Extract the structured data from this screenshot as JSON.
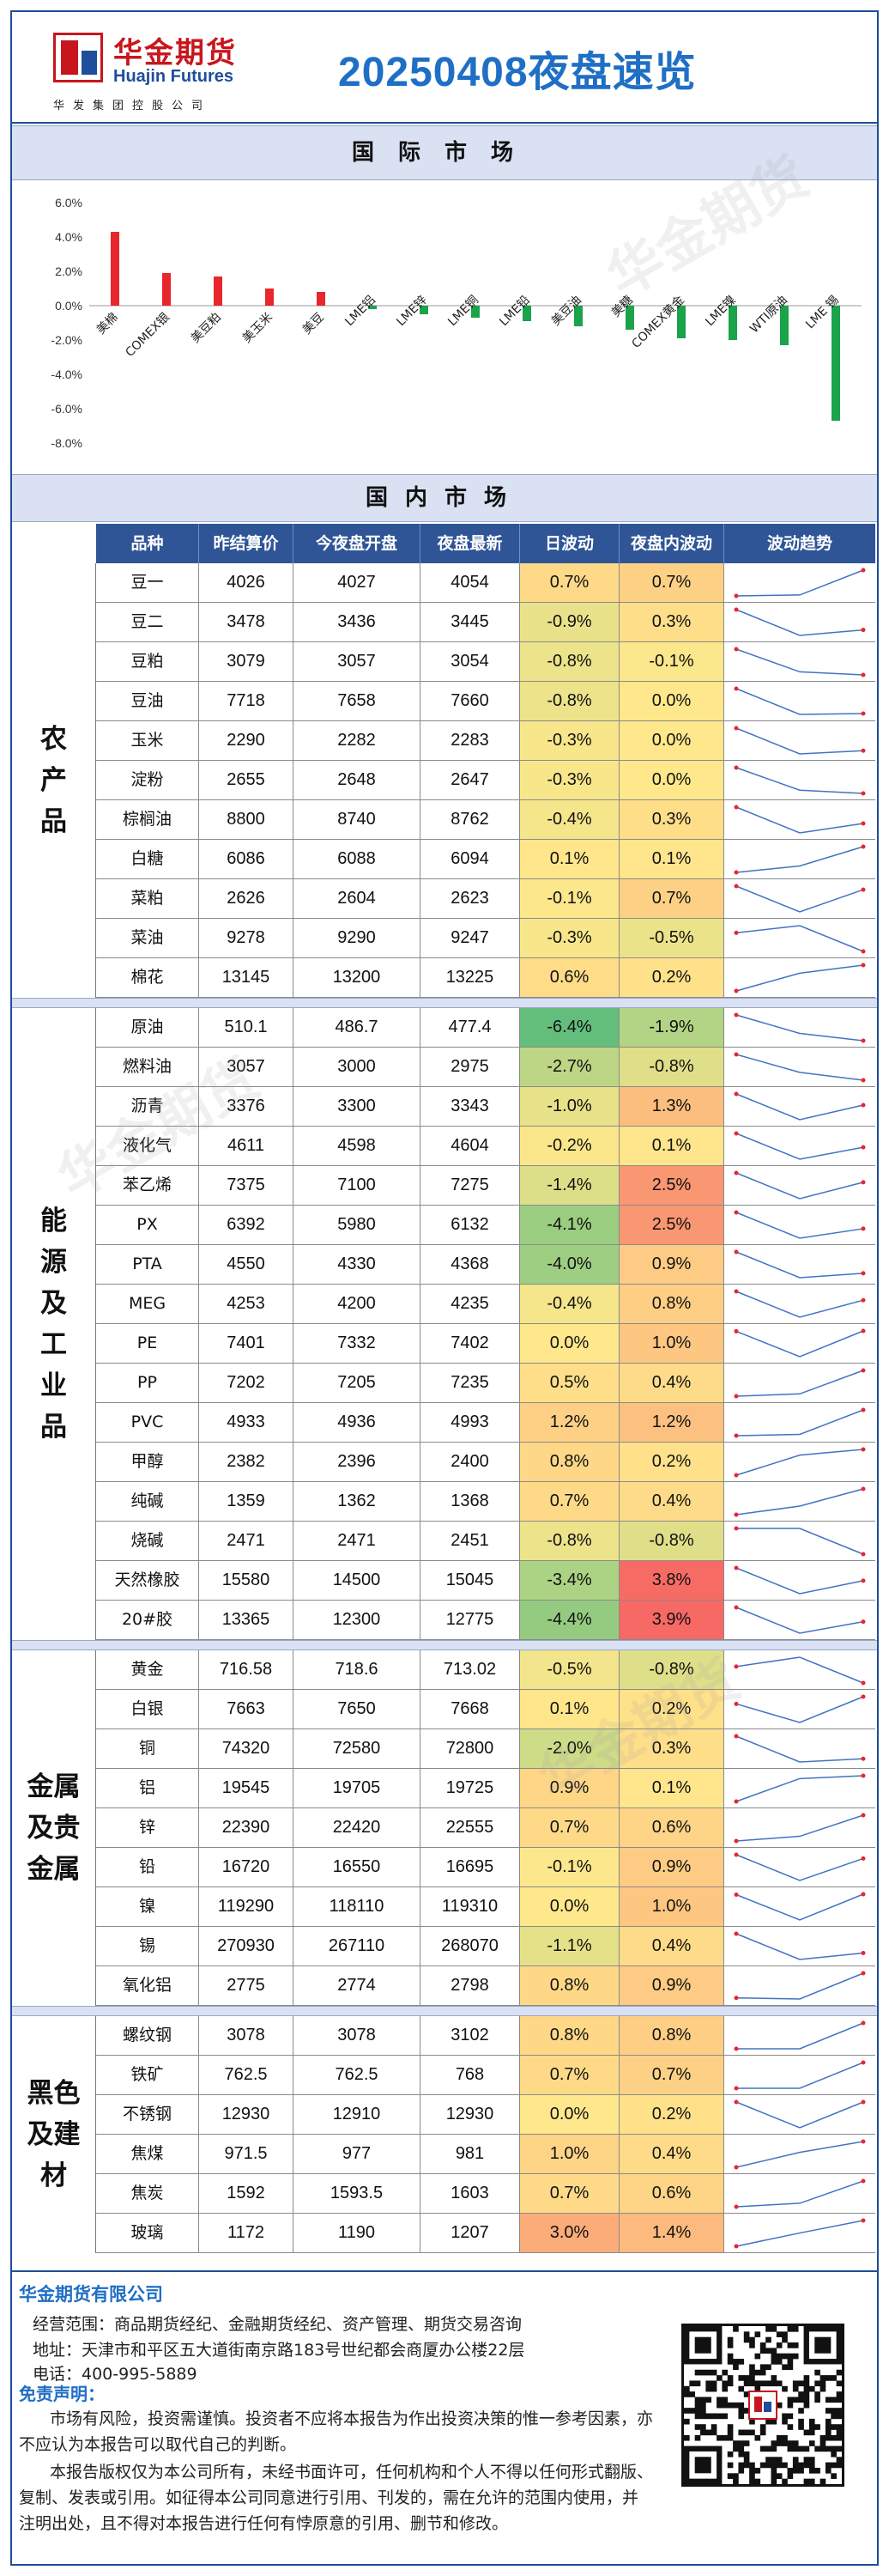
{
  "header": {
    "logo_cn": "华金期货",
    "logo_en": "Huajin Futures",
    "logo_sub": "华发集团控股公司",
    "title": "20250408夜盘速览"
  },
  "intl_title": "国际市场",
  "domestic_title": "国内市场",
  "chart_data": {
    "type": "bar",
    "categories": [
      "美棉",
      "COMEX银",
      "美豆粕",
      "美玉米",
      "美豆",
      "LME铝",
      "LME锌",
      "LME铜",
      "LME铅",
      "美豆油",
      "美糖",
      "COMEX黄金",
      "LME镍",
      "WTI原油",
      "LME 锡"
    ],
    "values": [
      4.3,
      1.9,
      1.7,
      1.0,
      0.8,
      -0.2,
      -0.5,
      -0.7,
      -0.9,
      -1.2,
      -1.4,
      -1.9,
      -2.0,
      -2.3,
      -6.7
    ],
    "ylim": [
      -8,
      6
    ],
    "yticks": [
      "6.0%",
      "4.0%",
      "2.0%",
      "0.0%",
      "-2.0%",
      "-4.0%",
      "-6.0%",
      "-8.0%"
    ],
    "colors": {
      "up": "#e8262b",
      "down": "#1aa34a"
    },
    "legend": "none"
  },
  "table": {
    "headers": [
      "品种",
      "昨结算价",
      "今夜盘开盘",
      "夜盘最新",
      "日波动",
      "夜盘内波动",
      "波动趋势"
    ],
    "groups": [
      {
        "label": "农产品",
        "rows": [
          [
            "豆一",
            "4026",
            "4027",
            "4054",
            "0.7%",
            "0.7%"
          ],
          [
            "豆二",
            "3478",
            "3436",
            "3445",
            "-0.9%",
            "0.3%"
          ],
          [
            "豆粕",
            "3079",
            "3057",
            "3054",
            "-0.8%",
            "-0.1%"
          ],
          [
            "豆油",
            "7718",
            "7658",
            "7660",
            "-0.8%",
            "0.0%"
          ],
          [
            "玉米",
            "2290",
            "2282",
            "2283",
            "-0.3%",
            "0.0%"
          ],
          [
            "淀粉",
            "2655",
            "2648",
            "2647",
            "-0.3%",
            "0.0%"
          ],
          [
            "棕榈油",
            "8800",
            "8740",
            "8762",
            "-0.4%",
            "0.3%"
          ],
          [
            "白糖",
            "6086",
            "6088",
            "6094",
            "0.1%",
            "0.1%"
          ],
          [
            "菜粕",
            "2626",
            "2604",
            "2623",
            "-0.1%",
            "0.7%"
          ],
          [
            "菜油",
            "9278",
            "9290",
            "9247",
            "-0.3%",
            "-0.5%"
          ],
          [
            "棉花",
            "13145",
            "13200",
            "13225",
            "0.6%",
            "0.2%"
          ]
        ]
      },
      {
        "label": "能源及工业品",
        "rows": [
          [
            "原油",
            "510.1",
            "486.7",
            "477.4",
            "-6.4%",
            "-1.9%"
          ],
          [
            "燃料油",
            "3057",
            "3000",
            "2975",
            "-2.7%",
            "-0.8%"
          ],
          [
            "沥青",
            "3376",
            "3300",
            "3343",
            "-1.0%",
            "1.3%"
          ],
          [
            "液化气",
            "4611",
            "4598",
            "4604",
            "-0.2%",
            "0.1%"
          ],
          [
            "苯乙烯",
            "7375",
            "7100",
            "7275",
            "-1.4%",
            "2.5%"
          ],
          [
            "PX",
            "6392",
            "5980",
            "6132",
            "-4.1%",
            "2.5%"
          ],
          [
            "PTA",
            "4550",
            "4330",
            "4368",
            "-4.0%",
            "0.9%"
          ],
          [
            "MEG",
            "4253",
            "4200",
            "4235",
            "-0.4%",
            "0.8%"
          ],
          [
            "PE",
            "7401",
            "7332",
            "7402",
            "0.0%",
            "1.0%"
          ],
          [
            "PP",
            "7202",
            "7205",
            "7235",
            "0.5%",
            "0.4%"
          ],
          [
            "PVC",
            "4933",
            "4936",
            "4993",
            "1.2%",
            "1.2%"
          ],
          [
            "甲醇",
            "2382",
            "2396",
            "2400",
            "0.8%",
            "0.2%"
          ],
          [
            "纯碱",
            "1359",
            "1362",
            "1368",
            "0.7%",
            "0.4%"
          ],
          [
            "烧碱",
            "2471",
            "2471",
            "2451",
            "-0.8%",
            "-0.8%"
          ],
          [
            "天然橡胶",
            "15580",
            "14500",
            "15045",
            "-3.4%",
            "3.8%"
          ],
          [
            "20#胶",
            "13365",
            "12300",
            "12775",
            "-4.4%",
            "3.9%"
          ]
        ]
      },
      {
        "label": "金属及贵金属",
        "rows": [
          [
            "黄金",
            "716.58",
            "718.6",
            "713.02",
            "-0.5%",
            "-0.8%"
          ],
          [
            "白银",
            "7663",
            "7650",
            "7668",
            "0.1%",
            "0.2%"
          ],
          [
            "铜",
            "74320",
            "72580",
            "72800",
            "-2.0%",
            "0.3%"
          ],
          [
            "铝",
            "19545",
            "19705",
            "19725",
            "0.9%",
            "0.1%"
          ],
          [
            "锌",
            "22390",
            "22420",
            "22555",
            "0.7%",
            "0.6%"
          ],
          [
            "铅",
            "16720",
            "16550",
            "16695",
            "-0.1%",
            "0.9%"
          ],
          [
            "镍",
            "119290",
            "118110",
            "119310",
            "0.0%",
            "1.0%"
          ],
          [
            "锡",
            "270930",
            "267110",
            "268070",
            "-1.1%",
            "0.4%"
          ],
          [
            "氧化铝",
            "2775",
            "2774",
            "2798",
            "0.8%",
            "0.9%"
          ]
        ]
      },
      {
        "label": "黑色及建材",
        "rows": [
          [
            "螺纹钢",
            "3078",
            "3078",
            "3102",
            "0.8%",
            "0.8%"
          ],
          [
            "铁矿",
            "762.5",
            "762.5",
            "768",
            "0.7%",
            "0.7%"
          ],
          [
            "不锈钢",
            "12930",
            "12910",
            "12930",
            "0.0%",
            "0.2%"
          ],
          [
            "焦煤",
            "971.5",
            "977",
            "981",
            "1.0%",
            "0.4%"
          ],
          [
            "焦炭",
            "1592",
            "1593.5",
            "1603",
            "0.7%",
            "0.6%"
          ],
          [
            "玻璃",
            "1172",
            "1190",
            "1207",
            "3.0%",
            "1.4%"
          ]
        ]
      }
    ]
  },
  "footer": {
    "company": "华金期货有限公司",
    "scope": "经营范围：商品期货经纪、金融期货经纪、资产管理、期货交易咨询",
    "address": "地址：天津市和平区五大道街南京路183号世纪都会商厦办公楼22层",
    "phone": "电话：400-995-5889",
    "disclaimer_title": "免责声明：",
    "para1": "市场有风险，投资需谨慎。投资者不应将本报告为作出投资决策的惟一参考因素，亦不应认为本报告可以取代自己的判断。",
    "para2": "本报告版权仅为本公司所有，未经书面许可，任何机构和个人不得以任何形式翻版、复制、发表或引用。如征得本公司同意进行引用、刊发的，需在允许的范围内使用，并注明出处，且不得对本报告进行任何有悖原意的引用、删节和修改。",
    "watermark": "华金期货"
  }
}
